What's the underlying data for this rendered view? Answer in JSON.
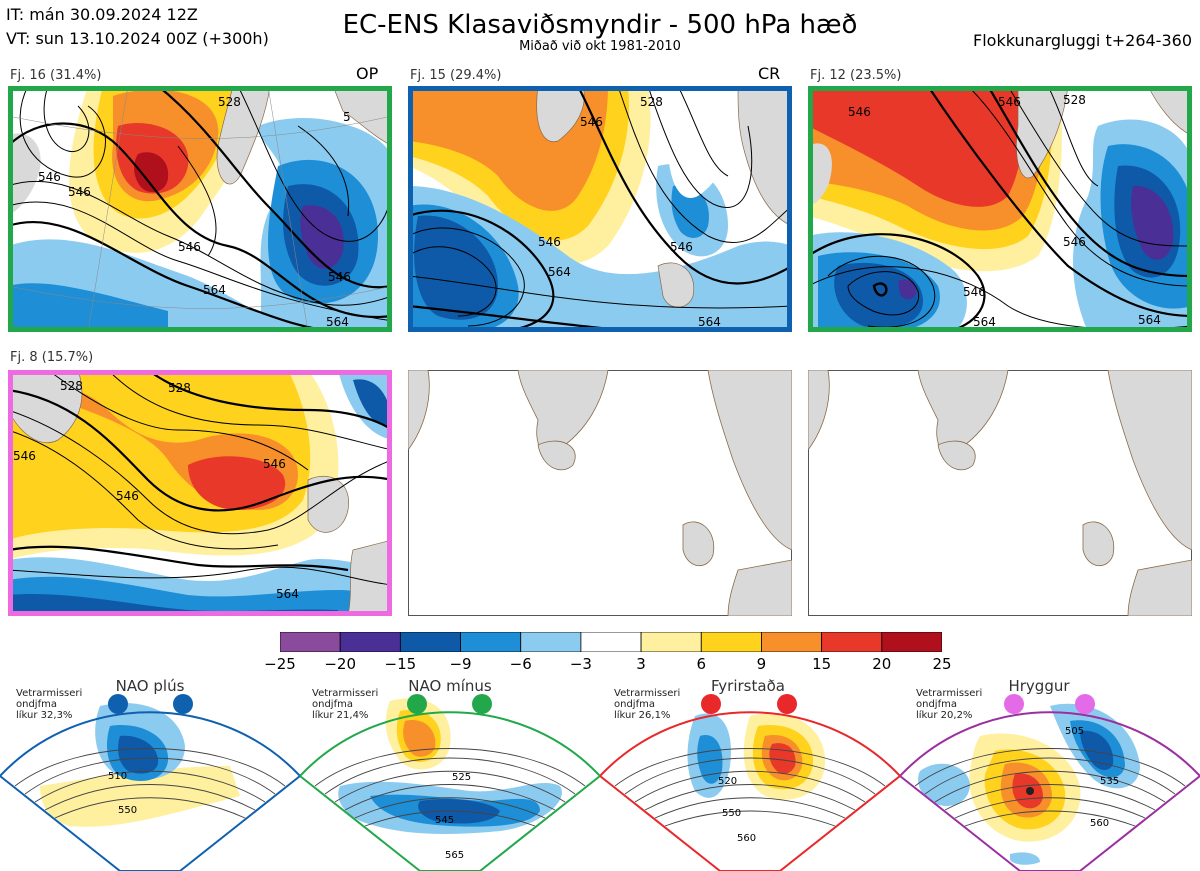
{
  "header": {
    "it": "IT: mán 30.09.2024 12Z",
    "vt": "VT: sun 13.10.2024 00Z  (+300h)",
    "title": "EC-ENS Klasaviðsmyndir - 500 hPa hæð",
    "subtitle": "Miðað við okt 1981-2010",
    "window": "Flokkunargluggi t+264-360"
  },
  "colors": {
    "land": "#d9d9d9",
    "coast": "#8a6a4a",
    "contour": "#000000"
  },
  "chart_data": {
    "type": "heatmap",
    "title": "EC-ENS Klasaviðsmyndir - 500 hPa hæð",
    "colorbar": {
      "ticks": [
        "−25",
        "−20",
        "−15",
        "−9",
        "−6",
        "−3",
        "3",
        "6",
        "9",
        "15",
        "20",
        "25"
      ],
      "colors": [
        "#8b4b9d",
        "#4a2f96",
        "#0f5aa8",
        "#1e8fd6",
        "#8ccbf0",
        "#ffffff",
        "#fff0a0",
        "#ffd21e",
        "#f7902b",
        "#e8382a",
        "#b00f1c"
      ]
    },
    "clusters": [
      {
        "label": "Fj. 16 (31.4%)",
        "tag": "OP",
        "border": "#22a84a",
        "contour_labels": [
          "546",
          "546",
          "564",
          "546",
          "564",
          "546",
          "528",
          "5"
        ]
      },
      {
        "label": "Fj. 15 (29.4%)",
        "tag": "CR",
        "border": "#1060b0",
        "contour_labels": [
          "546",
          "528",
          "546",
          "564",
          "546",
          "564"
        ]
      },
      {
        "label": "Fj. 12 (23.5%)",
        "tag": "",
        "border": "#22a84a",
        "contour_labels": [
          "546",
          "546",
          "528",
          "546",
          "546",
          "564",
          "564"
        ]
      },
      {
        "label": "Fj. 8 (15.7%)",
        "tag": "",
        "border": "#ee6ae0",
        "contour_labels": [
          "528",
          "546",
          "546",
          "528",
          "564",
          "546"
        ]
      }
    ],
    "regimes": [
      {
        "name": "NAO plús",
        "note": [
          "Vetrarmisseri",
          "ondjfma",
          "líkur 32,3%"
        ],
        "color": "#1060b0",
        "contours": [
          "510",
          "550"
        ]
      },
      {
        "name": "NAO mínus",
        "note": [
          "Vetrarmisseri",
          "ondjfma",
          "líkur 21,4%"
        ],
        "color": "#22a84a",
        "contours": [
          "525",
          "545",
          "565"
        ]
      },
      {
        "name": "Fyrirstaða",
        "note": [
          "Vetrarmisseri",
          "ondjfma",
          "líkur 26,1%"
        ],
        "color": "#e8282a",
        "contours": [
          "520",
          "550",
          "560"
        ]
      },
      {
        "name": "Hryggur",
        "note": [
          "Vetrarmisseri",
          "ondjfma",
          "líkur 20,2%"
        ],
        "color": "#e36be8",
        "contours": [
          "505",
          "535",
          "560"
        ]
      }
    ]
  }
}
